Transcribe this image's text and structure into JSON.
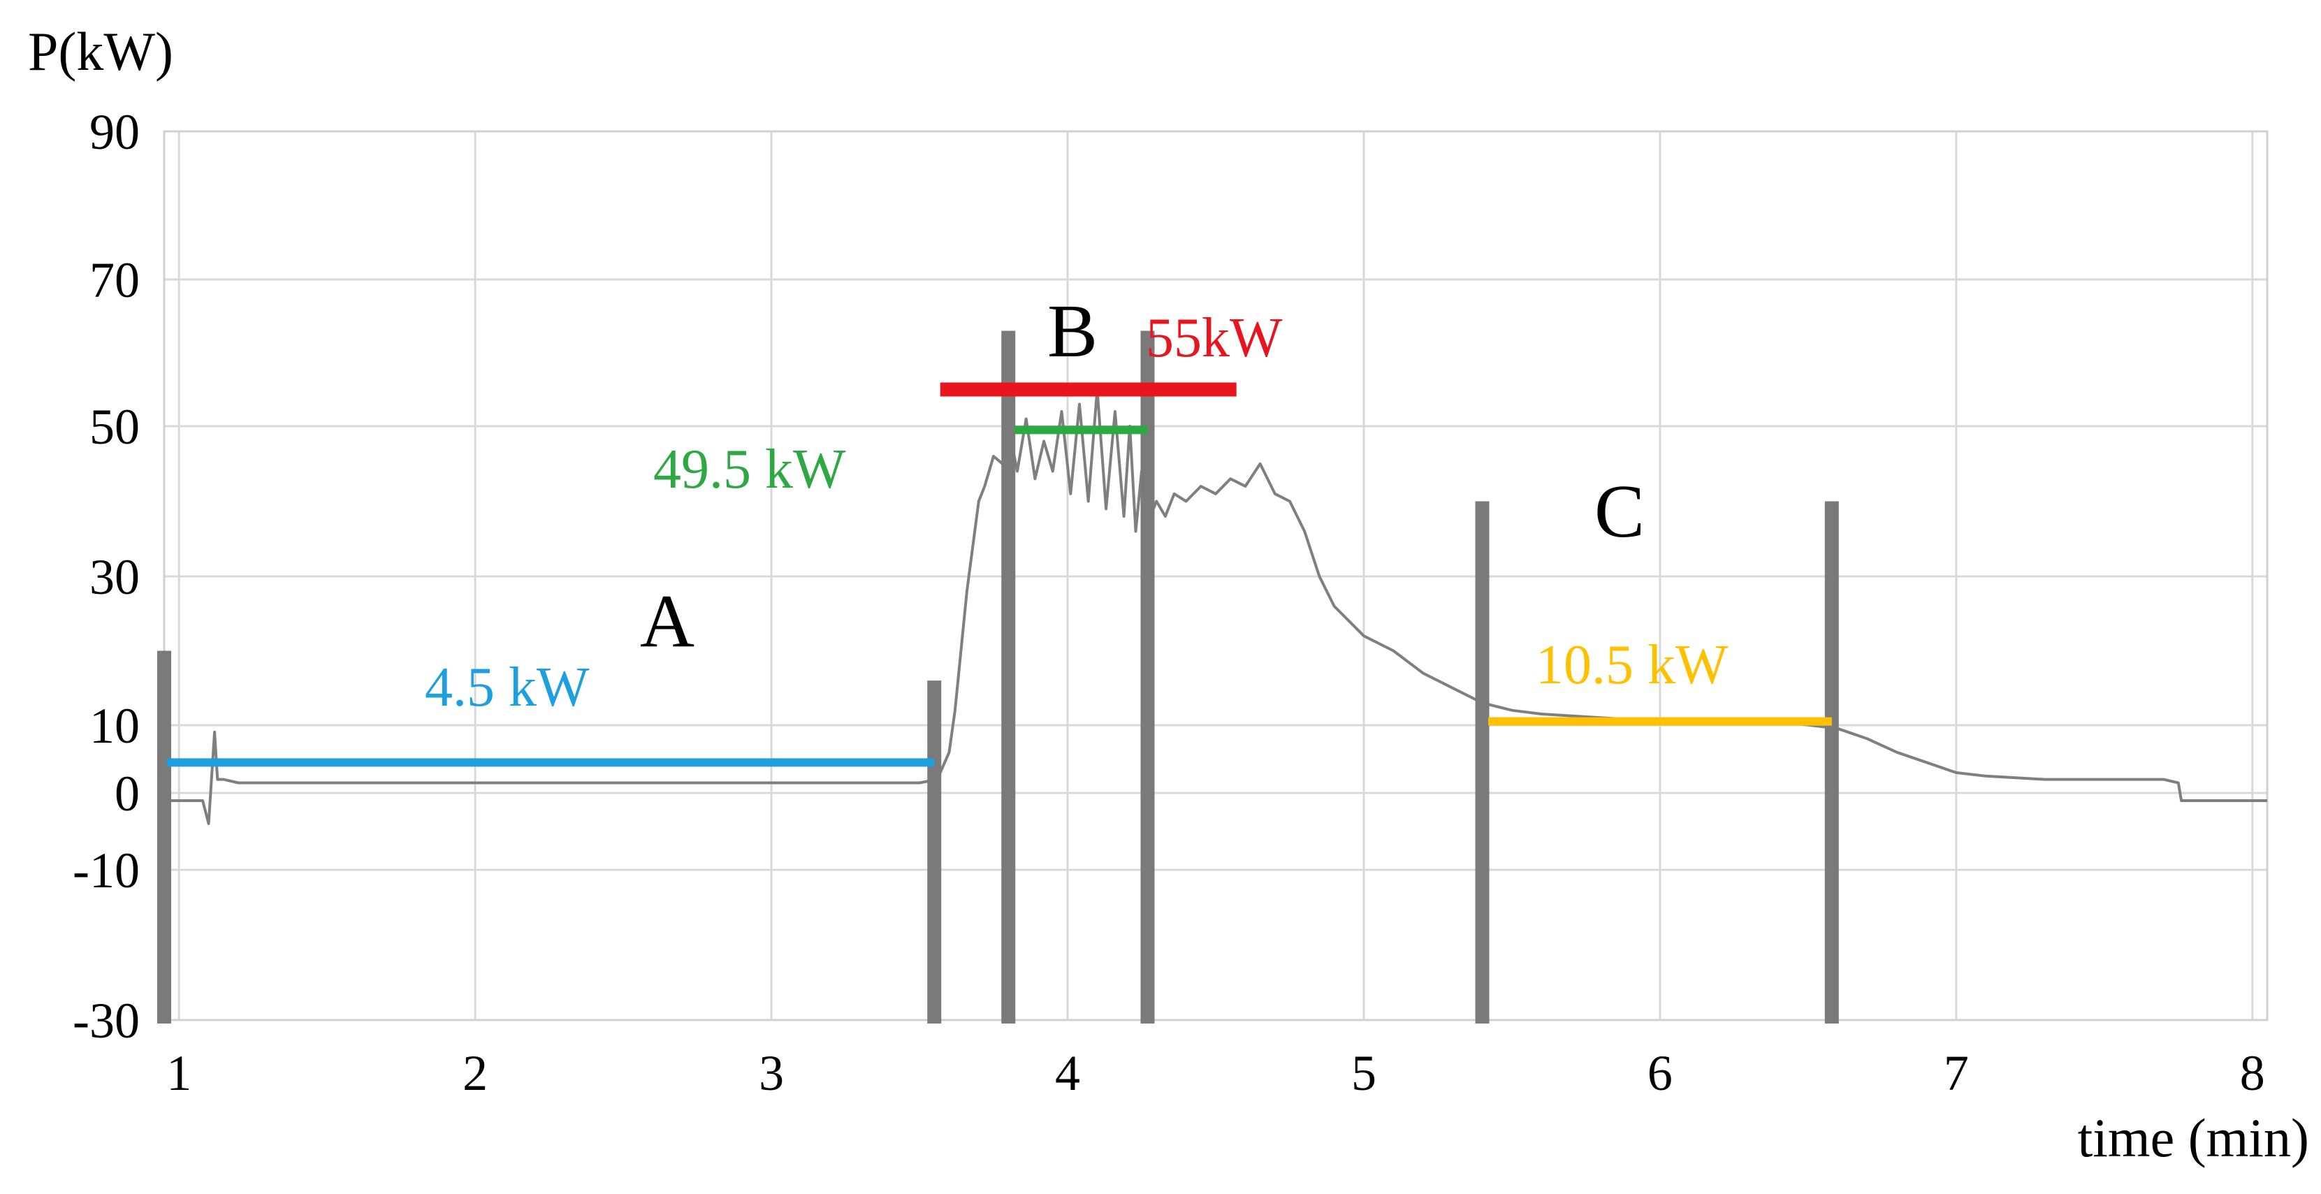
{
  "chart_data": {
    "type": "line",
    "ylabel": "P(kW)",
    "xlabel": "time (min)",
    "x_ticks": [
      "1",
      "2",
      "3",
      "4",
      "5",
      "6",
      "7",
      "8"
    ],
    "y_ticks": [
      "90",
      "70",
      "50",
      "30",
      "10",
      "0",
      "-10",
      "-30"
    ],
    "xlim": [
      0.95,
      8.05
    ],
    "grid": true,
    "colors": {
      "trace": "#7f7f7f",
      "marker": "#7a7a7a",
      "blue": "#1e9fe0",
      "red": "#e8151e",
      "green": "#2ea843",
      "orange": "#ffc000",
      "grid": "#d9d9d9"
    },
    "series": [
      {
        "x": [
          0.95,
          1.08,
          1.1,
          1.12,
          1.13,
          1.15,
          1.2,
          1.4,
          1.7,
          2.0,
          2.3,
          2.6,
          2.9,
          3.2,
          3.5,
          3.56,
          3.6,
          3.62,
          3.64,
          3.66,
          3.7,
          3.72,
          3.75,
          3.78,
          3.8,
          3.83,
          3.86,
          3.89,
          3.92,
          3.95,
          3.98,
          4.01,
          4.04,
          4.07,
          4.1,
          4.13,
          4.16,
          4.19,
          4.21,
          4.23,
          4.25,
          4.27,
          4.3,
          4.33,
          4.36,
          4.4,
          4.45,
          4.5,
          4.55,
          4.6,
          4.65,
          4.7,
          4.75,
          4.8,
          4.85,
          4.9,
          5.0,
          5.1,
          5.2,
          5.3,
          5.4,
          5.5,
          5.6,
          5.8,
          6.0,
          6.2,
          6.4,
          6.6,
          6.7,
          6.8,
          6.9,
          7.0,
          7.1,
          7.3,
          7.5,
          7.7,
          7.75,
          7.76,
          7.8,
          8.05
        ],
        "y": [
          -1,
          -1,
          -4,
          9,
          2,
          2,
          1.5,
          1.5,
          1.5,
          1.5,
          1.5,
          1.5,
          1.5,
          1.5,
          1.5,
          2,
          6,
          12,
          20,
          28,
          40,
          42,
          46,
          45,
          50,
          44,
          51,
          43,
          48,
          44,
          52,
          41,
          53,
          40,
          55,
          39,
          52,
          38,
          50,
          36,
          44,
          37,
          40,
          38,
          41,
          40,
          42,
          41,
          43,
          42,
          45,
          41,
          40,
          36,
          30,
          26,
          22,
          20,
          17,
          15,
          13,
          12,
          11.5,
          11,
          10.5,
          10.5,
          10.5,
          9.5,
          8,
          6,
          4.5,
          3,
          2.5,
          2,
          2,
          2,
          1.5,
          -1,
          -1,
          -1
        ]
      }
    ],
    "region_labels": [
      "A",
      "B",
      "C"
    ],
    "level_lines": [
      {
        "label": "4.5 kW",
        "value": 4.5,
        "x_range": [
          0.96,
          3.55
        ],
        "color": "blue"
      },
      {
        "label": "55kW",
        "value": 55,
        "x_range": [
          3.57,
          4.57
        ],
        "color": "red"
      },
      {
        "label": "49.5 kW",
        "value": 49.5,
        "x_range": [
          3.82,
          4.27
        ],
        "color": "green"
      },
      {
        "label": "10.5   kW",
        "value": 10.5,
        "x_range": [
          5.42,
          6.58
        ],
        "color": "orange"
      }
    ],
    "boundaries": [
      {
        "x": 0.95,
        "y_top": 20
      },
      {
        "x": 3.55,
        "y_top": 16
      },
      {
        "x": 3.8,
        "y_top": 63
      },
      {
        "x": 4.27,
        "y_top": 63
      },
      {
        "x": 5.4,
        "y_top": 40
      },
      {
        "x": 6.58,
        "y_top": 40
      }
    ]
  }
}
